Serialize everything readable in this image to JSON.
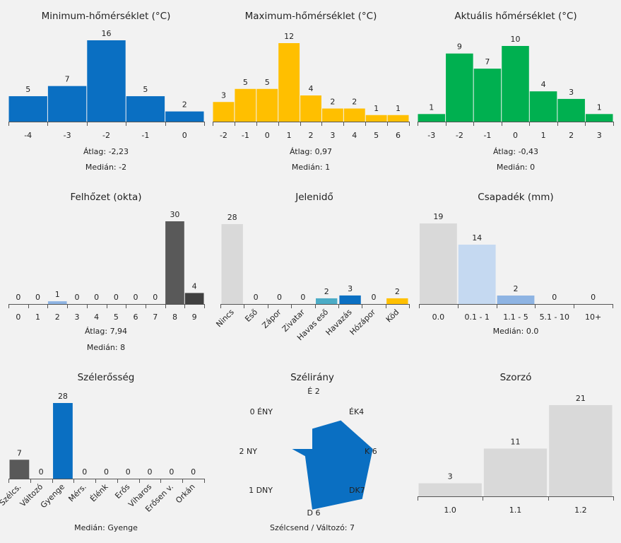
{
  "colors": {
    "min": "#0a6fc2",
    "max": "#ffbf00",
    "act": "#00b050",
    "dark": "#595959",
    "darker": "#404040",
    "lightblue": "#8eb4e3",
    "lightgray": "#d9d9d9",
    "paleblue": "#c5d9f1",
    "teal": "#4bacc6",
    "yellow": "#ffc000",
    "axis": "#555555"
  },
  "chart_data": [
    {
      "id": "min",
      "type": "bar",
      "title": "Minimum-hőmérséklet (°C)",
      "categories": [
        "-4",
        "-3",
        "-2",
        "-1",
        "0"
      ],
      "values": [
        5,
        7,
        16,
        5,
        2
      ],
      "ylim": [
        0,
        16
      ],
      "stats": [
        "Átlag: -2,23",
        "Medián: -2"
      ]
    },
    {
      "id": "max",
      "type": "bar",
      "title": "Maximum-hőmérséklet (°C)",
      "categories": [
        "-2",
        "-1",
        "0",
        "1",
        "2",
        "3",
        "4",
        "5",
        "6"
      ],
      "values": [
        3,
        5,
        5,
        12,
        4,
        2,
        2,
        1,
        1
      ],
      "ylim": [
        0,
        12
      ],
      "stats": [
        "Átlag: 0,97",
        "Medián: 1"
      ]
    },
    {
      "id": "act",
      "type": "bar",
      "title": "Aktuális hőmérséklet (°C)",
      "categories": [
        "-3",
        "-2",
        "-1",
        "0",
        "1",
        "2",
        "3"
      ],
      "values": [
        1,
        9,
        7,
        10,
        4,
        3,
        1
      ],
      "ylim": [
        0,
        10
      ],
      "stats": [
        "Átlag: -0,43",
        "Medián: 0"
      ]
    },
    {
      "id": "cloud",
      "type": "bar",
      "title": "Felhőzet (okta)",
      "categories": [
        "0",
        "1",
        "2",
        "3",
        "4",
        "5",
        "6",
        "7",
        "8",
        "9"
      ],
      "values": [
        0,
        0,
        1,
        0,
        0,
        0,
        0,
        0,
        30,
        4
      ],
      "ylim": [
        0,
        30
      ],
      "stats": [
        "Átlag: 7,94",
        "Medián: 8"
      ]
    },
    {
      "id": "weather",
      "type": "bar",
      "title": "Jelenidő",
      "categories": [
        "Nincs",
        "Eső",
        "Zápor",
        "Zivatar",
        "Havas eső",
        "Havazás",
        "Hózápor",
        "Köd"
      ],
      "values": [
        28,
        0,
        0,
        0,
        2,
        3,
        0,
        2
      ],
      "ylim": [
        0,
        28
      ],
      "stats": []
    },
    {
      "id": "precip",
      "type": "bar",
      "title": "Csapadék (mm)",
      "categories": [
        "0.0",
        "0.1 - 1",
        "1.1 - 5",
        "5.1 - 10",
        "10+"
      ],
      "values": [
        19,
        14,
        2,
        0,
        0
      ],
      "ylim": [
        0,
        19
      ],
      "stats": [
        "Medián: 0.0"
      ]
    },
    {
      "id": "wind",
      "type": "bar",
      "title": "Szélerősség",
      "categories": [
        "Szélcs.",
        "Változó",
        "Gyenge",
        "Mérs.",
        "Élénk",
        "Erős",
        "Viharos",
        "Erősen v.",
        "Orkán"
      ],
      "values": [
        7,
        0,
        28,
        0,
        0,
        0,
        0,
        0,
        0
      ],
      "ylim": [
        0,
        28
      ],
      "stats": [
        "Medián: Gyenge"
      ]
    },
    {
      "id": "direction",
      "type": "radar",
      "title": "Szélirány",
      "axes": [
        {
          "label": "É",
          "value": 2,
          "text": "É 2"
        },
        {
          "label": "ÉK",
          "value": 4,
          "text": "ÉK4"
        },
        {
          "label": "K",
          "value": 6,
          "text": "K 6"
        },
        {
          "label": "DK",
          "value": 7,
          "text": "DK7"
        },
        {
          "label": "D",
          "value": 6,
          "text": "D 6"
        },
        {
          "label": "DNY",
          "value": 1,
          "text": "1 DNY"
        },
        {
          "label": "NY",
          "value": 2,
          "text": "2 NY"
        },
        {
          "label": "ÉNY",
          "value": 0,
          "text": "0 ÉNY"
        }
      ],
      "max": 7,
      "stats": [
        "Szélcsend / Változó: 7"
      ]
    },
    {
      "id": "mult",
      "type": "bar",
      "title": "Szorzó",
      "categories": [
        "1.0",
        "1.1",
        "1.2"
      ],
      "values": [
        3,
        11,
        21
      ],
      "ylim": [
        0,
        21
      ],
      "stats": []
    }
  ]
}
